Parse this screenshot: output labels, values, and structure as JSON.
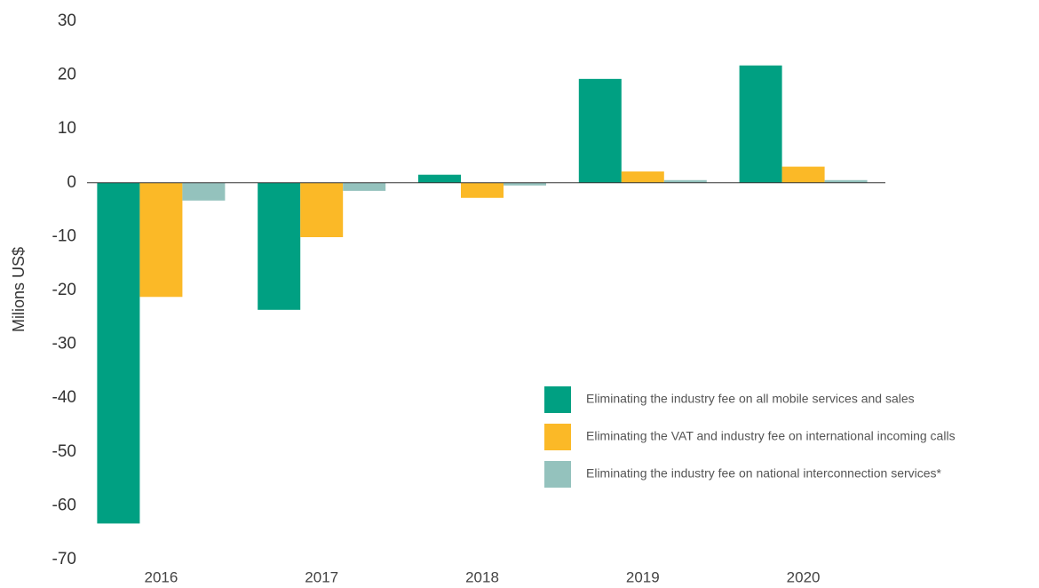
{
  "chart_data": {
    "type": "bar",
    "y_label": "Milions US$",
    "categories": [
      "2016",
      "2017",
      "2018",
      "2019",
      "2020"
    ],
    "series": [
      {
        "name": "Eliminating the industry fee on all mobile services and sales",
        "color": "#00a082",
        "values": [
          -63.3,
          -23.6,
          1.5,
          19.3,
          21.8
        ]
      },
      {
        "name": "Eliminating the VAT and industry fee on international incoming calls",
        "color": "#fbb927",
        "values": [
          -21.2,
          -10.1,
          -2.8,
          2.1,
          3.0
        ]
      },
      {
        "name": "Eliminating the industry fee on national interconnection services*",
        "color": "#94c2bd",
        "values": [
          -3.3,
          -1.5,
          -0.5,
          0.5,
          0.5
        ]
      }
    ],
    "ylim": [
      -70,
      30
    ],
    "yticks": [
      -70,
      -60,
      -50,
      -40,
      -30,
      -20,
      -10,
      0,
      10,
      20,
      30
    ],
    "grid": false,
    "legend": "lower right"
  }
}
